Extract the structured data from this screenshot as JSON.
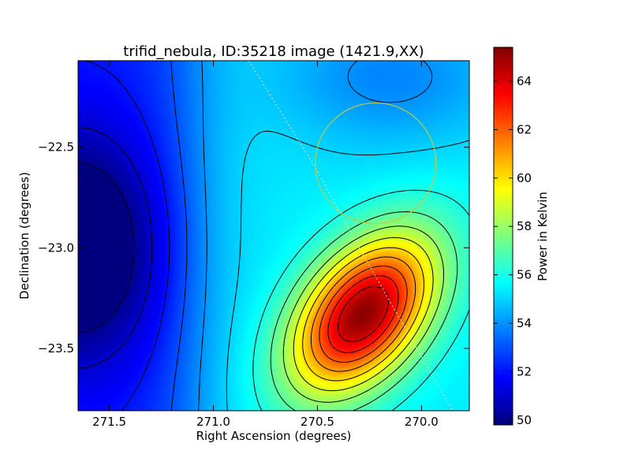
{
  "chart_data": {
    "type": "heatmap",
    "title": "trifid_nebula, ID:35218 image (1421.9,XX)",
    "xlabel": "Right Ascension (degrees)",
    "ylabel": "Declination (degrees)",
    "xlim": [
      271.65,
      269.77
    ],
    "ylim": [
      -23.81,
      -22.07
    ],
    "x_ticks": [
      271.5,
      271.0,
      270.5,
      270.0
    ],
    "x_tick_labels": [
      "271.5",
      "271.0",
      "270.5",
      "270.0"
    ],
    "y_ticks": [
      -22.5,
      -23.0,
      -23.5
    ],
    "y_tick_labels": [
      "−22.5",
      "−23.0",
      "−23.5"
    ],
    "colorbar": {
      "label": "Power in Kelvin",
      "range": [
        49.8,
        65.4
      ],
      "ticks": [
        50,
        52,
        54,
        56,
        58,
        60,
        62,
        64
      ],
      "tick_labels": [
        "50",
        "52",
        "54",
        "56",
        "58",
        "60",
        "62",
        "64"
      ],
      "colormap": "jet"
    },
    "colormap_colors": [
      "#00007f",
      "#0000ff",
      "#007fff",
      "#00ffff",
      "#7fff7f",
      "#ffff00",
      "#ff7f00",
      "#ff0000",
      "#7f0000"
    ],
    "field_peaks": [
      {
        "ra": 270.28,
        "dec": -23.33,
        "value": 65.4,
        "type": "maximum"
      },
      {
        "ra": 271.65,
        "dec": -23.0,
        "value": 49.8,
        "type": "minimum"
      }
    ],
    "overlay_circle": {
      "center_ra": 270.22,
      "center_dec": -22.58,
      "radius_deg": 0.3,
      "color": "#c8c83c"
    },
    "overlay_path": {
      "points": [
        [
          270.83,
          -22.07
        ],
        [
          270.51,
          -22.6
        ],
        [
          270.3,
          -23.0
        ],
        [
          269.85,
          -23.81
        ]
      ],
      "color": "#f0e6b4"
    },
    "contour_color": "#000000",
    "grid": false
  }
}
